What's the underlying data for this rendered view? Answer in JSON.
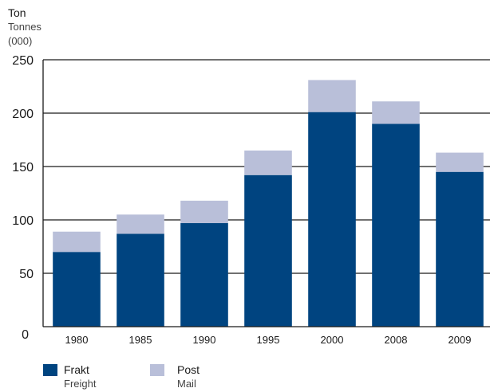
{
  "chart_data": {
    "type": "bar",
    "stacked": true,
    "y_unit_label_primary": "Ton",
    "y_unit_label_secondary": "Tonnes",
    "y_unit_label_tertiary": "(000)",
    "categories": [
      "1980",
      "1985",
      "1990",
      "1995",
      "2000",
      "2008",
      "2009"
    ],
    "series": [
      {
        "name": "Frakt",
        "name_secondary": "Freight",
        "color": "#004480",
        "values": [
          70,
          87,
          97,
          142,
          201,
          190,
          145
        ]
      },
      {
        "name": "Post",
        "name_secondary": "Mail",
        "color": "#b9bfd9",
        "values": [
          19,
          18,
          21,
          23,
          30,
          21,
          18
        ]
      }
    ],
    "ylim": [
      0,
      250
    ],
    "yticks": [
      0,
      50,
      100,
      150,
      200,
      250
    ],
    "grid": "horizontal",
    "legend_position": "bottom-left"
  }
}
